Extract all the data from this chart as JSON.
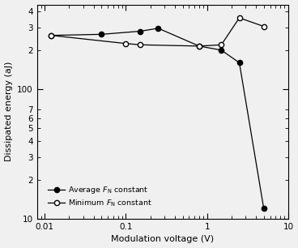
{
  "avg_x": [
    0.012,
    0.05,
    0.15,
    0.25,
    0.8,
    1.5,
    2.5,
    5.0
  ],
  "avg_y": [
    260,
    265,
    280,
    295,
    215,
    200,
    160,
    12
  ],
  "min_x": [
    0.012,
    0.1,
    0.15,
    0.8,
    1.5,
    2.5,
    5.0
  ],
  "min_y": [
    260,
    225,
    220,
    215,
    220,
    355,
    305
  ],
  "xlabel": "Modulation voltage (V)",
  "ylabel": "Dissipated energy (aJ)",
  "legend_avg": "Average $F_{\\mathrm{N}}$ constant",
  "legend_min": "Minimum $F_{\\mathrm{N}}$ constant",
  "xlim": [
    0.008,
    10
  ],
  "ylim": [
    10,
    450
  ],
  "bg_color": "#f0f0f0",
  "line_color": "#000000",
  "major_yticks": [
    10,
    100
  ],
  "major_ylabels": [
    "10",
    "100"
  ],
  "minor_yticks": [
    20,
    30,
    40,
    50,
    60,
    70,
    200,
    300,
    400
  ],
  "minor_ylabels": [
    "2",
    "3",
    "4",
    "5",
    "6",
    "7",
    "2",
    "3",
    "4"
  ],
  "major_xticks": [
    0.01,
    0.1,
    1,
    10
  ],
  "major_xlabels": [
    "0.01",
    "0.1",
    "1",
    "10"
  ]
}
